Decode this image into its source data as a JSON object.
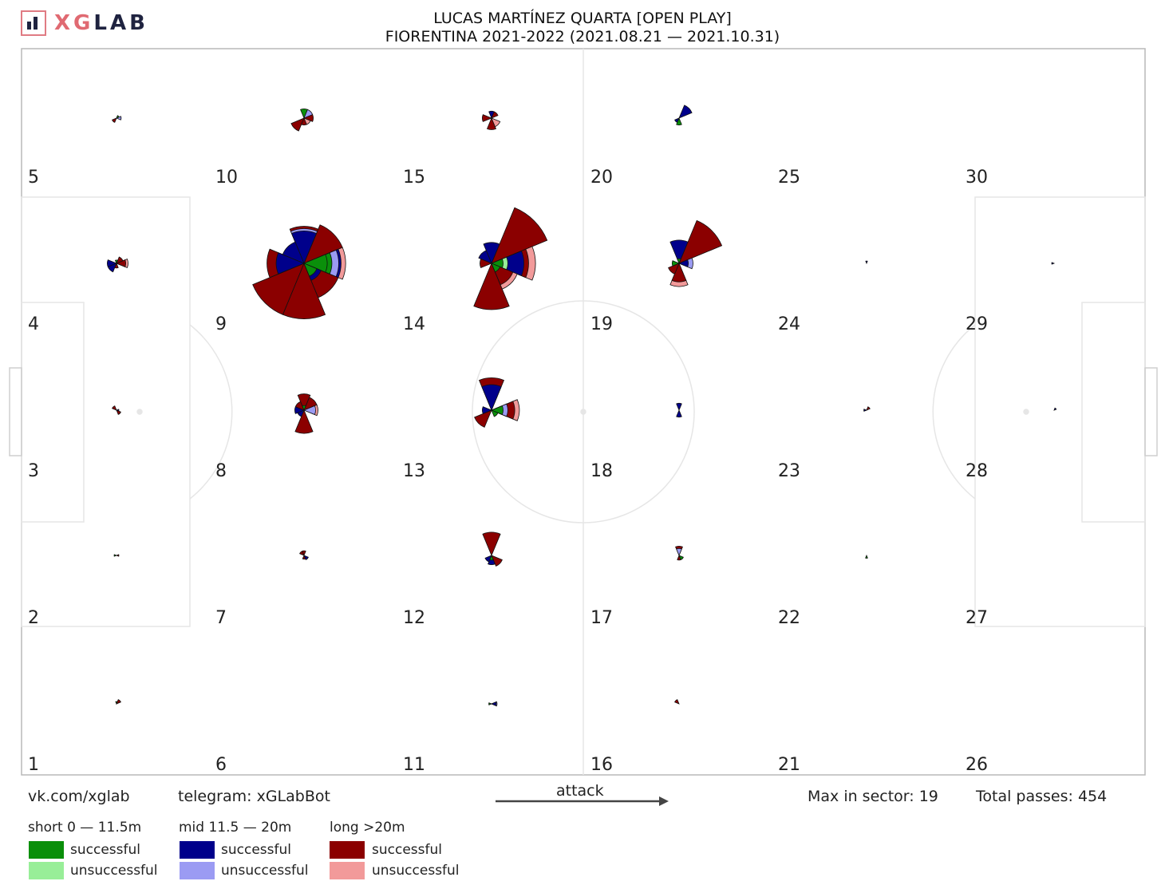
{
  "header": {
    "brand_xg": "XG",
    "brand_lab": "LAB",
    "title_line1": "LUCAS MARTÍNEZ QUARTA [OPEN PLAY]",
    "title_line2": "FIORENTINA 2021-2022 (2021.08.21 — 2021.10.31)"
  },
  "footer": {
    "vk": "vk.com/xglab",
    "telegram": "telegram: xGLabBot",
    "attack": "attack",
    "max_in_sector": "Max in sector: 19",
    "total_passes": "Total passes: 454"
  },
  "legend": {
    "short": {
      "title": "short 0 — 11.5m",
      "successful": "successful",
      "unsuccessful": "unsuccessful",
      "color_success": "#0a8f0a",
      "color_fail": "#98ee98"
    },
    "mid": {
      "title": "mid 11.5 — 20m",
      "successful": "successful",
      "unsuccessful": "unsuccessful",
      "color_success": "#00008b",
      "color_fail": "#9b9bf3"
    },
    "long": {
      "title": "long >20m",
      "successful": "successful",
      "unsuccessful": "unsuccessful",
      "color_success": "#8b0000",
      "color_fail": "#f29a9a"
    }
  },
  "chart_data": {
    "type": "radial pass roses on pitch grid",
    "max_in_sector": 19,
    "total_passes": 454,
    "zones": [
      {
        "id": "1",
        "label": "1"
      },
      {
        "id": "2",
        "label": "2"
      },
      {
        "id": "3",
        "label": "3"
      },
      {
        "id": "4",
        "label": "4"
      },
      {
        "id": "5",
        "label": "5"
      },
      {
        "id": "6",
        "label": "6"
      },
      {
        "id": "7",
        "label": "7"
      },
      {
        "id": "8",
        "label": "8"
      },
      {
        "id": "9",
        "label": "9"
      },
      {
        "id": "10",
        "label": "10"
      },
      {
        "id": "11",
        "label": "11"
      },
      {
        "id": "12",
        "label": "12"
      },
      {
        "id": "13",
        "label": "13"
      },
      {
        "id": "14",
        "label": "14"
      },
      {
        "id": "15",
        "label": "15"
      },
      {
        "id": "16",
        "label": "16"
      },
      {
        "id": "17",
        "label": "17"
      },
      {
        "id": "18",
        "label": "18"
      },
      {
        "id": "19",
        "label": "19"
      },
      {
        "id": "20",
        "label": "20"
      },
      {
        "id": "21",
        "label": "21"
      },
      {
        "id": "22",
        "label": "22"
      },
      {
        "id": "23",
        "label": "23"
      },
      {
        "id": "24",
        "label": "24"
      },
      {
        "id": "25",
        "label": "25"
      },
      {
        "id": "26",
        "label": "26"
      },
      {
        "id": "27",
        "label": "27"
      },
      {
        "id": "28",
        "label": "28"
      },
      {
        "id": "29",
        "label": "29"
      },
      {
        "id": "30",
        "label": "30"
      }
    ],
    "roses": [
      {
        "zone": "1",
        "w": [
          {
            "dir": "NE",
            "cat": "long_s",
            "n": 1
          },
          {
            "dir": "N",
            "cat": "short_s",
            "n": 0.5
          }
        ]
      },
      {
        "zone": "2",
        "w": [
          {
            "dir": "W",
            "cat": "short_s",
            "n": 0.5
          },
          {
            "dir": "E",
            "cat": "long_s",
            "n": 0.4
          }
        ]
      },
      {
        "zone": "3",
        "w": [
          {
            "dir": "NW",
            "cat": "long_s",
            "n": 1
          },
          {
            "dir": "SE",
            "cat": "long_s",
            "n": 1
          },
          {
            "dir": "E",
            "cat": "mid_s",
            "n": 0.5
          }
        ]
      },
      {
        "zone": "4",
        "w": [
          {
            "dir": "W",
            "cat": "mid_s",
            "n": 2
          },
          {
            "dir": "SW",
            "cat": "mid_s",
            "n": 2
          },
          {
            "dir": "E",
            "cat": "long_s",
            "n": 2
          },
          {
            "dir": "E",
            "cat": "long_f",
            "n": 2.5
          },
          {
            "dir": "NE",
            "cat": "long_s",
            "n": 1.5
          },
          {
            "dir": "S",
            "cat": "long_s",
            "n": 1
          },
          {
            "dir": "N",
            "cat": "short_s",
            "n": 0.7
          }
        ]
      },
      {
        "zone": "5",
        "w": [
          {
            "dir": "SW",
            "cat": "long_s",
            "n": 1
          },
          {
            "dir": "E",
            "cat": "mid_f",
            "n": 1
          },
          {
            "dir": "NE",
            "cat": "short_s",
            "n": 0.6
          }
        ]
      },
      {
        "zone": "7",
        "w": [
          {
            "dir": "N",
            "cat": "long_s",
            "n": 1
          },
          {
            "dir": "NW",
            "cat": "long_s",
            "n": 1
          },
          {
            "dir": "SE",
            "cat": "mid_s",
            "n": 1
          },
          {
            "dir": "S",
            "cat": "long_s",
            "n": 0.8
          }
        ]
      },
      {
        "zone": "8",
        "w": [
          {
            "dir": "S",
            "cat": "long_s",
            "n": 5
          },
          {
            "dir": "N",
            "cat": "long_s",
            "n": 3.5
          },
          {
            "dir": "NE",
            "cat": "long_s",
            "n": 3
          },
          {
            "dir": "E",
            "cat": "long_f",
            "n": 3
          },
          {
            "dir": "E",
            "cat": "mid_f",
            "n": 2.5
          },
          {
            "dir": "W",
            "cat": "mid_s",
            "n": 2
          },
          {
            "dir": "SW",
            "cat": "mid_s",
            "n": 1.5
          },
          {
            "dir": "NW",
            "cat": "long_s",
            "n": 2
          },
          {
            "dir": "N",
            "cat": "short_s",
            "n": 1
          }
        ]
      },
      {
        "zone": "9",
        "w": [
          {
            "dir": "S",
            "cat": "long_s",
            "n": 12
          },
          {
            "dir": "SW",
            "cat": "long_s",
            "n": 12
          },
          {
            "dir": "W",
            "cat": "long_s",
            "n": 8
          },
          {
            "dir": "W",
            "cat": "mid_s",
            "n": 6
          },
          {
            "dir": "SE",
            "cat": "long_s",
            "n": 8
          },
          {
            "dir": "E",
            "cat": "long_f",
            "n": 9
          },
          {
            "dir": "E",
            "cat": "mid_s",
            "n": 8
          },
          {
            "dir": "E",
            "cat": "mid_f",
            "n": 7.5
          },
          {
            "dir": "E",
            "cat": "short_s",
            "n": 6
          },
          {
            "dir": "NE",
            "cat": "long_s",
            "n": 9
          },
          {
            "dir": "N",
            "cat": "long_s",
            "n": 8
          },
          {
            "dir": "N",
            "cat": "mid_f",
            "n": 7.5
          },
          {
            "dir": "N",
            "cat": "mid_s",
            "n": 7
          },
          {
            "dir": "NW",
            "cat": "mid_s",
            "n": 5
          },
          {
            "dir": "SE",
            "cat": "mid_s",
            "n": 4
          },
          {
            "dir": "E",
            "cat": "short_s",
            "n": 5
          },
          {
            "dir": "SE",
            "cat": "short_s",
            "n": 3
          }
        ]
      },
      {
        "zone": "10",
        "w": [
          {
            "dir": "SW",
            "cat": "long_s",
            "n": 3
          },
          {
            "dir": "N",
            "cat": "short_s",
            "n": 2
          },
          {
            "dir": "NE",
            "cat": "mid_f",
            "n": 2
          },
          {
            "dir": "E",
            "cat": "long_s",
            "n": 2
          },
          {
            "dir": "S",
            "cat": "long_s",
            "n": 1.5
          },
          {
            "dir": "SE",
            "cat": "long_f",
            "n": 1.5
          }
        ]
      },
      {
        "zone": "11",
        "w": [
          {
            "dir": "E",
            "cat": "mid_s",
            "n": 1
          },
          {
            "dir": "E",
            "cat": "mid_f",
            "n": 1.2
          },
          {
            "dir": "W",
            "cat": "short_s",
            "n": 0.6
          }
        ]
      },
      {
        "zone": "12",
        "w": [
          {
            "dir": "N",
            "cat": "long_s",
            "n": 5
          },
          {
            "dir": "SE",
            "cat": "long_s",
            "n": 2.5
          },
          {
            "dir": "S",
            "cat": "mid_s",
            "n": 2
          },
          {
            "dir": "SW",
            "cat": "mid_s",
            "n": 1.5
          },
          {
            "dir": "S",
            "cat": "short_s",
            "n": 1
          }
        ]
      },
      {
        "zone": "13",
        "w": [
          {
            "dir": "N",
            "cat": "long_s",
            "n": 7
          },
          {
            "dir": "N",
            "cat": "mid_s",
            "n": 5.5
          },
          {
            "dir": "E",
            "cat": "long_f",
            "n": 6
          },
          {
            "dir": "E",
            "cat": "long_s",
            "n": 5
          },
          {
            "dir": "E",
            "cat": "mid_f",
            "n": 3.5
          },
          {
            "dir": "SW",
            "cat": "long_s",
            "n": 4
          },
          {
            "dir": "W",
            "cat": "mid_s",
            "n": 2
          },
          {
            "dir": "E",
            "cat": "short_s",
            "n": 2.5
          },
          {
            "dir": "SE",
            "cat": "short_s",
            "n": 1.5
          }
        ]
      },
      {
        "zone": "14",
        "w": [
          {
            "dir": "NE",
            "cat": "long_s",
            "n": 13
          },
          {
            "dir": "S",
            "cat": "long_s",
            "n": 10
          },
          {
            "dir": "E",
            "cat": "long_f",
            "n": 9.5
          },
          {
            "dir": "E",
            "cat": "long_s",
            "n": 8
          },
          {
            "dir": "E",
            "cat": "mid_s",
            "n": 7
          },
          {
            "dir": "SE",
            "cat": "long_f",
            "n": 6
          },
          {
            "dir": "SE",
            "cat": "long_s",
            "n": 5
          },
          {
            "dir": "N",
            "cat": "mid_s",
            "n": 4.5
          },
          {
            "dir": "NW",
            "cat": "mid_s",
            "n": 3
          },
          {
            "dir": "W",
            "cat": "long_s",
            "n": 2.5
          },
          {
            "dir": "E",
            "cat": "short_f",
            "n": 3.5
          },
          {
            "dir": "E",
            "cat": "short_s",
            "n": 2.5
          },
          {
            "dir": "SE",
            "cat": "short_s",
            "n": 2
          }
        ]
      },
      {
        "zone": "15",
        "w": [
          {
            "dir": "S",
            "cat": "long_s",
            "n": 2.5
          },
          {
            "dir": "SE",
            "cat": "long_f",
            "n": 2
          },
          {
            "dir": "W",
            "cat": "long_s",
            "n": 2
          },
          {
            "dir": "N",
            "cat": "mid_s",
            "n": 1.5
          },
          {
            "dir": "NE",
            "cat": "long_s",
            "n": 1.5
          }
        ]
      },
      {
        "zone": "16",
        "w": [
          {
            "dir": "NW",
            "cat": "long_s",
            "n": 1
          }
        ]
      },
      {
        "zone": "17",
        "w": [
          {
            "dir": "N",
            "cat": "long_s",
            "n": 2
          },
          {
            "dir": "N",
            "cat": "mid_f",
            "n": 1.5
          },
          {
            "dir": "S",
            "cat": "long_s",
            "n": 1
          },
          {
            "dir": "SE",
            "cat": "short_s",
            "n": 1
          }
        ]
      },
      {
        "zone": "18",
        "w": [
          {
            "dir": "N",
            "cat": "mid_s",
            "n": 1.5
          },
          {
            "dir": "S",
            "cat": "mid_s",
            "n": 1.5
          }
        ]
      },
      {
        "zone": "19",
        "w": [
          {
            "dir": "NE",
            "cat": "long_s",
            "n": 10
          },
          {
            "dir": "N",
            "cat": "mid_s",
            "n": 5
          },
          {
            "dir": "S",
            "cat": "long_s",
            "n": 4
          },
          {
            "dir": "S",
            "cat": "long_f",
            "n": 5
          },
          {
            "dir": "E",
            "cat": "mid_f",
            "n": 3
          },
          {
            "dir": "E",
            "cat": "mid_s",
            "n": 2
          },
          {
            "dir": "SW",
            "cat": "long_s",
            "n": 2.5
          },
          {
            "dir": "W",
            "cat": "short_s",
            "n": 1.5
          },
          {
            "dir": "N",
            "cat": "short_s",
            "n": 1
          }
        ]
      },
      {
        "zone": "20",
        "w": [
          {
            "dir": "NE",
            "cat": "mid_s",
            "n": 3
          },
          {
            "dir": "S",
            "cat": "short_s",
            "n": 1.5
          },
          {
            "dir": "SW",
            "cat": "mid_s",
            "n": 1
          }
        ]
      },
      {
        "zone": "22",
        "w": [
          {
            "dir": "S",
            "cat": "short_s",
            "n": 0.6
          }
        ]
      },
      {
        "zone": "23",
        "w": [
          {
            "dir": "NE",
            "cat": "long_s",
            "n": 0.8
          },
          {
            "dir": "W",
            "cat": "mid_s",
            "n": 0.6
          }
        ]
      },
      {
        "zone": "24",
        "w": [
          {
            "dir": "N",
            "cat": "mid_s",
            "n": 0.4
          }
        ]
      },
      {
        "zone": "28",
        "w": [
          {
            "dir": "NE",
            "cat": "mid_s",
            "n": 0.3
          }
        ]
      },
      {
        "zone": "29",
        "w": [
          {
            "dir": "W",
            "cat": "mid_s",
            "n": 0.3
          }
        ]
      }
    ]
  }
}
